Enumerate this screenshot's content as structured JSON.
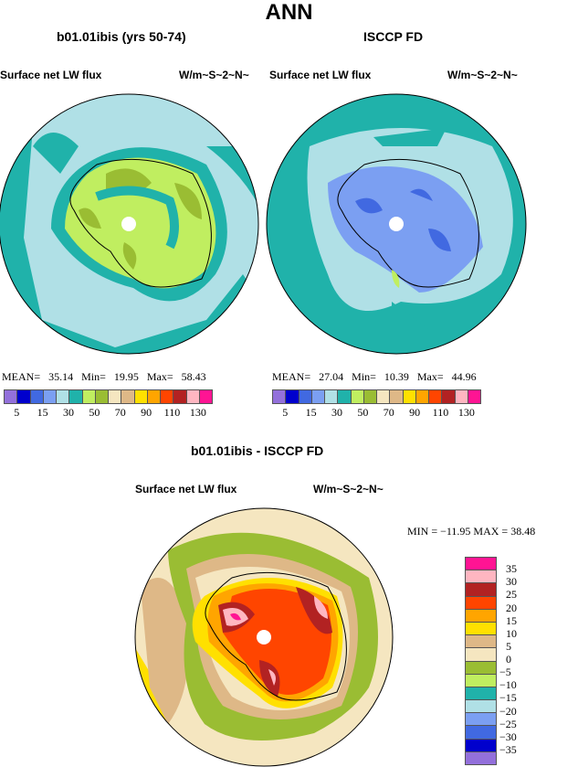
{
  "title": "ANN",
  "panels": [
    {
      "title": "b01.01ibis (yrs 50-74)",
      "left_label": "Surface net LW flux",
      "right_label": "W/m~S~2~N~",
      "stats": {
        "mean_label": "MEAN=",
        "mean": "35.14",
        "min_label": "Min=",
        "min": "19.95",
        "max_label": "Max=",
        "max": "58.43"
      }
    },
    {
      "title": "ISCCP FD",
      "left_label": "Surface net LW flux",
      "right_label": "W/m~S~2~N~",
      "stats": {
        "mean_label": "MEAN=",
        "mean": "27.04",
        "min_label": "Min=",
        "min": "10.39",
        "max_label": "Max=",
        "max": "44.96"
      }
    }
  ],
  "diff_panel": {
    "title": "b01.01ibis - ISCCP FD",
    "left_label": "Surface net LW flux",
    "right_label": "W/m~S~2~N~",
    "stats": "MIN = −11.95 MAX =  38.48"
  },
  "colorbar_colors": [
    "#9370DB",
    "#0000CD",
    "#4169E1",
    "#7B9FF2",
    "#B0E0E6",
    "#20B2AA",
    "#C0EE60",
    "#9ABD33",
    "#F5E6C0",
    "#DEB887",
    "#FFE000",
    "#FFA500",
    "#FF4500",
    "#B22222",
    "#FFB6C1",
    "#FF1493"
  ],
  "colorbar_labels": [
    "5",
    "15",
    "30",
    "50",
    "70",
    "90",
    "110",
    "130"
  ],
  "diff_colorbar_labels": [
    "35",
    "30",
    "25",
    "20",
    "15",
    "10",
    "5",
    "0",
    "−5",
    "−10",
    "−15",
    "−20",
    "−25",
    "−30",
    "−35"
  ]
}
